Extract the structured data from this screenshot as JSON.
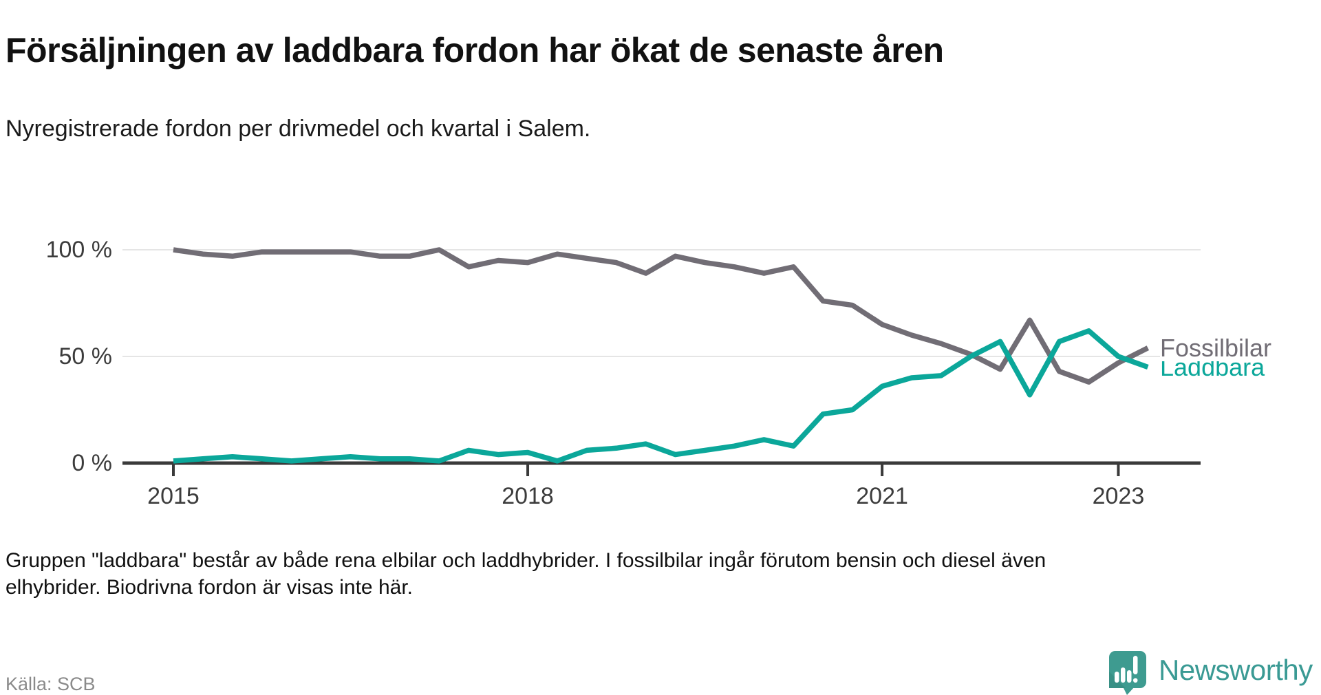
{
  "header": {
    "title": "Försäljningen av laddbara fordon har ökat de senaste åren",
    "subtitle": "Nyregistrerade fordon per drivmedel och kvartal i Salem."
  },
  "chart_data": {
    "type": "line",
    "x_start": "2015-Q1",
    "x_frequency": "quarterly",
    "x_tick_labels": [
      "2015",
      "2018",
      "2021",
      "2023"
    ],
    "x_tick_quarter_index": [
      0,
      12,
      24,
      32
    ],
    "y_ticks": [
      {
        "value": 0,
        "label": "0 %"
      },
      {
        "value": 50,
        "label": "50 %"
      },
      {
        "value": 100,
        "label": "100 %"
      }
    ],
    "ylim": [
      0,
      100
    ],
    "grid_values": [
      50,
      100
    ],
    "legend_position": "end-of-line",
    "series": [
      {
        "name": "Fossilbilar",
        "color": "#716d75",
        "values": [
          100,
          98,
          97,
          99,
          99,
          99,
          99,
          97,
          97,
          100,
          92,
          95,
          94,
          98,
          96,
          94,
          89,
          97,
          94,
          92,
          89,
          92,
          76,
          74,
          65,
          60,
          56,
          51,
          44,
          67,
          43,
          38,
          47,
          54
        ]
      },
      {
        "name": "Laddbara",
        "color": "#0ba79a",
        "values": [
          1,
          2,
          3,
          2,
          1,
          2,
          3,
          2,
          2,
          1,
          6,
          4,
          5,
          1,
          6,
          7,
          9,
          4,
          6,
          8,
          11,
          8,
          23,
          25,
          36,
          40,
          41,
          50,
          57,
          32,
          57,
          62,
          50,
          45
        ]
      }
    ]
  },
  "footer": {
    "note": "Gruppen \"laddbara\" består av både rena elbilar och laddhybrider. I fossilbilar ingår förutom bensin och diesel även elhybrider. Biodrivna fordon är visas inte här.",
    "source": "Källa: SCB",
    "brand": "Newsworthy"
  },
  "colors": {
    "accent_teal": "#0ba79a",
    "gray_series": "#716d75",
    "axis": "#3a3a3a",
    "grid": "#e5e5e5",
    "brand_teal": "#3e9b90",
    "brand_text": "#3a9a94"
  }
}
